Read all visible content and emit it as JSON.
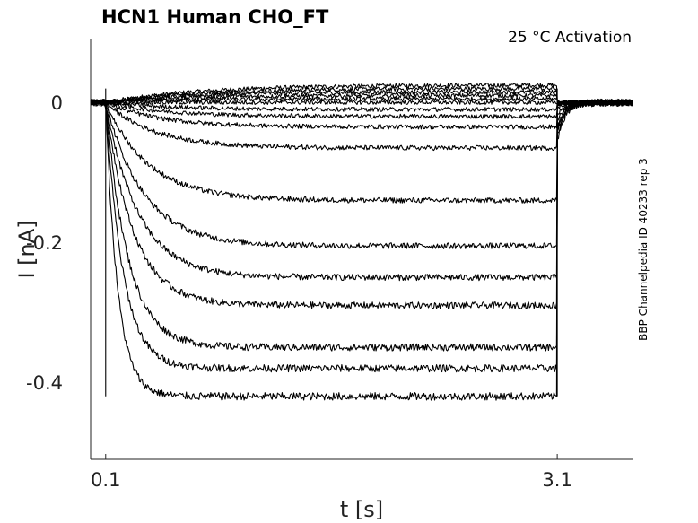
{
  "chart_data": {
    "type": "line",
    "title": "HCN1  Human  CHO_FT",
    "annotation": "25 °C  Activation",
    "side_label": "BBP Channelpedia ID 40233 rep 3",
    "xlabel": "t [s]",
    "ylabel": "I [nA]",
    "xlim": [
      0.0,
      3.6
    ],
    "ylim": [
      -0.51,
      0.09
    ],
    "x_ticks": [
      0.1,
      3.1
    ],
    "x_tick_labels": [
      "0.1",
      "3.1"
    ],
    "y_ticks": [
      0,
      -0.2,
      -0.4
    ],
    "y_tick_labels": [
      "0",
      "-0.2",
      "-0.4"
    ],
    "step_on": 0.1,
    "step_off": 3.1,
    "tail_min": -0.055,
    "grid": false,
    "series_steady_state": [
      0.025,
      0.02,
      0.015,
      0.01,
      0.005,
      0.0,
      -0.01,
      -0.02,
      -0.035,
      -0.065,
      -0.14,
      -0.205,
      -0.25,
      -0.29,
      -0.35,
      -0.38,
      -0.42
    ]
  }
}
